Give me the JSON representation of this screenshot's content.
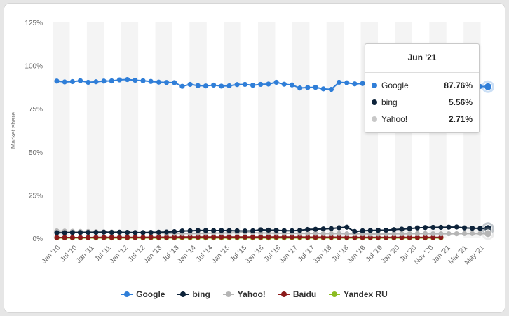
{
  "chart_data": {
    "type": "line",
    "ylabel": "Market share",
    "ylim": [
      0,
      125
    ],
    "yticks": [
      "0%",
      "25%",
      "50%",
      "75%",
      "100%",
      "125%"
    ],
    "xlabels": [
      "Jan '10",
      "Jul '10",
      "Jan '11",
      "Jul '11",
      "Jan '12",
      "Jul '12",
      "Jan '13",
      "Jul '13",
      "Jan '14",
      "Jul '14",
      "Jan '15",
      "Jul '15",
      "Jan '16",
      "Jul '16",
      "Jan '17",
      "Jul '17",
      "Jan '18",
      "Jul '18",
      "Jan '19",
      "Jul '19",
      "Jan '20",
      "Jul '20",
      "Nov '20",
      "Jan '21",
      "Mar '21",
      "May '21"
    ],
    "series": [
      {
        "name": "Google",
        "color": "#2f7ed8",
        "values": [
          91.0,
          90.5,
          90.7,
          91.2,
          90.3,
          90.6,
          91.0,
          91.1,
          91.7,
          91.9,
          91.5,
          91.2,
          90.8,
          90.4,
          90.2,
          90.1,
          88.0,
          89.1,
          88.4,
          88.2,
          88.7,
          88.1,
          88.3,
          89.0,
          89.1,
          88.6,
          89.1,
          89.3,
          90.3,
          89.2,
          88.8,
          87.0,
          87.3,
          87.4,
          86.5,
          86.2,
          90.3,
          90.0,
          89.4,
          89.6,
          89.4,
          89.8,
          90.1,
          90.5,
          91.0,
          91.3,
          91.1,
          91.2,
          91.3,
          91.4,
          91.2,
          90.6,
          89.9,
          88.6,
          87.9,
          87.76
        ]
      },
      {
        "name": "bing",
        "color": "#0d233a",
        "values": [
          3.2,
          3.2,
          3.3,
          3.3,
          3.4,
          3.4,
          3.5,
          3.4,
          3.5,
          3.4,
          3.3,
          3.3,
          3.4,
          3.5,
          3.6,
          3.8,
          4.2,
          4.3,
          4.5,
          4.5,
          4.4,
          4.5,
          4.4,
          4.3,
          4.2,
          4.3,
          4.9,
          4.7,
          4.6,
          4.4,
          4.3,
          4.6,
          5.1,
          5.2,
          5.4,
          5.6,
          6.1,
          6.4,
          3.9,
          4.3,
          4.5,
          4.6,
          4.7,
          5.0,
          5.3,
          5.6,
          6.0,
          6.2,
          6.3,
          6.3,
          6.4,
          6.5,
          6.0,
          5.8,
          5.7,
          5.56
        ]
      },
      {
        "name": "Yahoo!",
        "color": "#b5b5b5",
        "values": [
          4.2,
          4.1,
          4.0,
          3.9,
          3.9,
          3.8,
          3.7,
          3.6,
          3.5,
          3.4,
          3.3,
          3.2,
          3.1,
          3.0,
          2.9,
          2.8,
          2.7,
          2.7,
          2.8,
          2.9,
          3.0,
          3.0,
          3.1,
          3.2,
          3.3,
          3.2,
          3.1,
          3.0,
          2.9,
          2.9,
          2.9,
          2.8,
          2.8,
          2.8,
          2.7,
          2.7,
          2.7,
          2.6,
          2.6,
          2.6,
          2.5,
          2.5,
          2.5,
          2.6,
          2.6,
          2.6,
          2.7,
          2.7,
          2.6,
          2.6,
          2.6,
          2.6,
          2.7,
          2.7,
          2.7,
          2.71
        ]
      },
      {
        "name": "Baidu",
        "color": "#8b1a1a",
        "values": [
          0.4,
          0.4,
          0.4,
          0.4,
          0.4,
          0.5,
          0.5,
          0.5,
          0.5,
          0.5,
          0.5,
          0.5,
          0.6,
          0.6,
          0.6,
          0.6,
          0.7,
          0.7,
          0.7,
          0.7,
          0.7,
          0.7,
          0.7,
          0.7,
          0.7,
          0.7,
          0.7,
          0.7,
          0.7,
          0.7,
          0.7,
          0.7,
          0.6,
          0.6,
          0.6,
          0.6,
          0.6,
          0.5,
          0.5,
          0.5,
          0.5,
          0.5,
          0.5,
          0.5,
          0.5,
          0.5,
          0.5,
          0.5,
          0.5,
          0.5
        ]
      },
      {
        "name": "Yandex RU",
        "color": "#8bbc21",
        "values": [
          0.2,
          0.2,
          0.2,
          0.2,
          0.2,
          0.2,
          0.2,
          0.2,
          0.2,
          0.2,
          0.2,
          0.2,
          0.2,
          0.2,
          0.2,
          0.2,
          0.2,
          0.2,
          0.2,
          0.2,
          0.2,
          0.2,
          0.2,
          0.2,
          0.2,
          0.2,
          0.2,
          0.2,
          0.2,
          0.2,
          0.2,
          0.2,
          0.2,
          0.2,
          0.2,
          0.2,
          0.2,
          0.2,
          0.2,
          0.2,
          0.2,
          0.2,
          0.2,
          0.2,
          0.2,
          0.2,
          0.2,
          0.2,
          0.2,
          0.2
        ]
      }
    ],
    "legend_position": "bottom",
    "grid": "alternating vertical bands"
  },
  "tooltip": {
    "title": "Jun '21",
    "rows": [
      {
        "name": "Google",
        "value": "87.76%",
        "color": "#2f7ed8"
      },
      {
        "name": "bing",
        "value": "5.56%",
        "color": "#0d233a"
      },
      {
        "name": "Yahoo!",
        "value": "2.71%",
        "color": "#c8c8c8"
      }
    ]
  }
}
